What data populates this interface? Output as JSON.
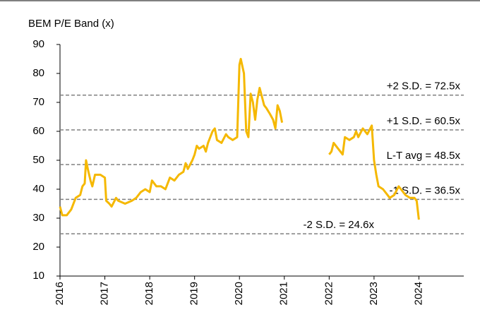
{
  "chart_data": {
    "type": "line",
    "title": "BEM P/E Band (x)",
    "x": [
      2016.0,
      2016.05,
      2016.15,
      2016.25,
      2016.35,
      2016.45,
      2016.5,
      2016.55,
      2016.58,
      2016.62,
      2016.68,
      2016.72,
      2016.78,
      2016.9,
      2017.0,
      2017.03,
      2017.1,
      2017.15,
      2017.25,
      2017.3,
      2017.45,
      2017.6,
      2017.7,
      2017.8,
      2017.9,
      2018.0,
      2018.05,
      2018.15,
      2018.25,
      2018.35,
      2018.45,
      2018.55,
      2018.65,
      2018.75,
      2018.8,
      2018.85,
      2018.95,
      2019.0,
      2019.05,
      2019.1,
      2019.2,
      2019.25,
      2019.3,
      2019.4,
      2019.45,
      2019.5,
      2019.6,
      2019.7,
      2019.75,
      2019.85,
      2019.95,
      2020.0,
      2020.03,
      2020.1,
      2020.15,
      2020.2,
      2020.25,
      2020.3,
      2020.35,
      2020.4,
      2020.45,
      2020.5,
      2020.55,
      2020.6,
      2020.68,
      2020.75,
      2020.8,
      2020.85,
      2020.9,
      2020.95,
      2021.5,
      2022.0,
      2022.05,
      2022.1,
      2022.2,
      2022.3,
      2022.35,
      2022.45,
      2022.55,
      2022.6,
      2022.65,
      2022.75,
      2022.85,
      2022.95,
      2023.0,
      2023.05,
      2023.1,
      2023.2,
      2023.3,
      2023.35,
      2023.45,
      2023.55,
      2023.6,
      2023.7,
      2023.8,
      2023.9,
      2023.95,
      2024.0
    ],
    "series": [
      {
        "name": "BEM P/E",
        "color": "#f5b800",
        "values": [
          34,
          31,
          31,
          33,
          37,
          38,
          41,
          42,
          50,
          47,
          43,
          41,
          45,
          45,
          44,
          36,
          35,
          34,
          37,
          36,
          35,
          36,
          37,
          39,
          40,
          39,
          43,
          41,
          41,
          40,
          44,
          43,
          45,
          46,
          49,
          47,
          50,
          52,
          55,
          54,
          55,
          53,
          56,
          60,
          61,
          57,
          56,
          59,
          58,
          57,
          58,
          83,
          85,
          80,
          60,
          58,
          73,
          70,
          64,
          71,
          75,
          72,
          69,
          68,
          66,
          64,
          61,
          69,
          67,
          63,
          null,
          52,
          53,
          56,
          54,
          52,
          58,
          57,
          58,
          60,
          58,
          61,
          59,
          62,
          50,
          45,
          41,
          40,
          38,
          37,
          38,
          41,
          40,
          38,
          37,
          37,
          36,
          29.5
        ]
      }
    ],
    "reference_lines": [
      {
        "value": 72.5,
        "label": "+2 S.D. = 72.5x"
      },
      {
        "value": 60.5,
        "label": "+1 S.D. = 60.5x"
      },
      {
        "value": 48.5,
        "label": "L-T avg = 48.5x"
      },
      {
        "value": 36.5,
        "label": "-1 S.D. = 36.5x"
      },
      {
        "value": 24.6,
        "label": "-2 S.D. = 24.6x"
      }
    ],
    "reference_color": "#808080",
    "xlim": [
      2016,
      2025
    ],
    "xticks": [
      2016,
      2017,
      2018,
      2019,
      2020,
      2021,
      2022,
      2023,
      2024
    ],
    "ylim": [
      10,
      90
    ],
    "yticks": [
      10,
      20,
      30,
      40,
      50,
      60,
      70,
      80,
      90
    ]
  }
}
